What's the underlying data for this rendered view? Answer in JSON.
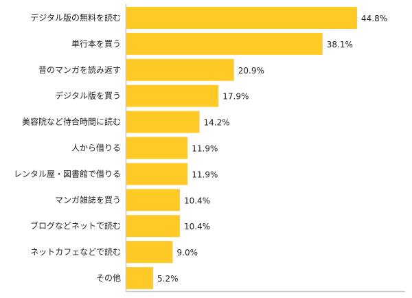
{
  "chart_data": {
    "type": "bar",
    "orientation": "horizontal",
    "title": "",
    "xlabel": "",
    "ylabel": "",
    "xlim": [
      0,
      50
    ],
    "grid": false,
    "bar_color": "#FFC926",
    "axis_color": "#C8C8C8",
    "categories": [
      "デジタル版の無料を読む",
      "単行本を買う",
      "昔のマンガを読み返す",
      "デジタル版を買う",
      "美容院など待合時間に読む",
      "人から借りる",
      "レンタル屋・図書館で借りる",
      "マンガ雑誌を買う",
      "ブログなどネットで読む",
      "ネットカフェなどで読む",
      "その他"
    ],
    "values": [
      44.8,
      38.1,
      20.9,
      17.9,
      14.2,
      11.9,
      11.9,
      10.4,
      10.4,
      9.0,
      5.2
    ],
    "value_labels": [
      "44.8%",
      "38.1%",
      "20.9%",
      "17.9%",
      "14.2%",
      "11.9%",
      "11.9%",
      "10.4%",
      "10.4%",
      "9.0%",
      "5.2%"
    ]
  }
}
